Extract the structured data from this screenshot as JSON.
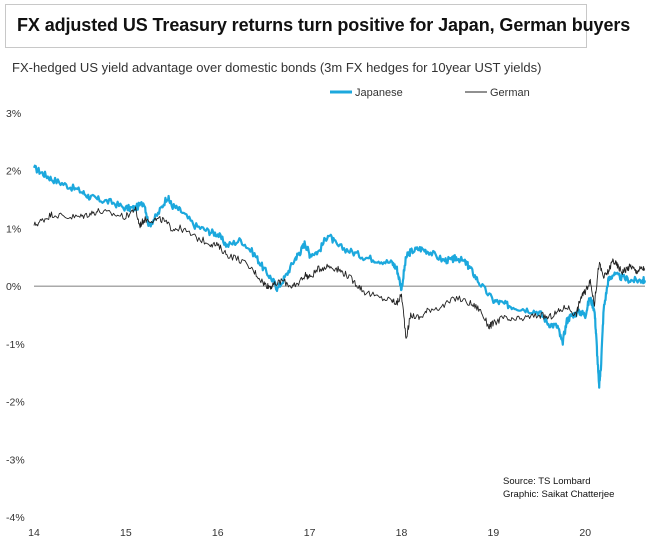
{
  "chart_data": {
    "type": "line",
    "title": "FX adjusted US Treasury returns turn positive for Japan, German buyers",
    "subtitle": "FX-hedged US yield advantage over domestic bonds (3m FX hedges for 10year UST yields)",
    "y_tick_labels": [
      "3%",
      "2%",
      "1%",
      "0%",
      "-1%",
      "-2%",
      "-3%",
      "-4%"
    ],
    "y_ticks": [
      3,
      2,
      1,
      0,
      -1,
      -2,
      -3,
      -4
    ],
    "x_tick_labels": [
      "14",
      "15",
      "16",
      "17",
      "18",
      "19",
      "20"
    ],
    "x_ticks": [
      2014,
      2015,
      2016,
      2017,
      2018,
      2019,
      2020
    ],
    "ylim": [
      -4,
      3
    ],
    "xlim": [
      2014,
      2020.65
    ],
    "zero_line": true,
    "legend_position": "top",
    "series": [
      {
        "name": "Japanese",
        "color": "#1ca8dd",
        "x": [
          2014.0,
          2014.1,
          2014.2,
          2014.35,
          2014.5,
          2014.6,
          2014.7,
          2014.85,
          2015.0,
          2015.1,
          2015.2,
          2015.25,
          2015.35,
          2015.45,
          2015.5,
          2015.6,
          2015.75,
          2015.9,
          2016.0,
          2016.1,
          2016.25,
          2016.4,
          2016.5,
          2016.6,
          2016.65,
          2016.75,
          2016.85,
          2016.9,
          2016.95,
          2017.0,
          2017.1,
          2017.2,
          2017.3,
          2017.45,
          2017.6,
          2017.75,
          2017.9,
          2017.95,
          2018.0,
          2018.05,
          2018.1,
          2018.2,
          2018.3,
          2018.45,
          2018.55,
          2018.6,
          2018.7,
          2018.75,
          2018.85,
          2019.0,
          2019.1,
          2019.2,
          2019.35,
          2019.5,
          2019.6,
          2019.7,
          2019.75,
          2019.8,
          2019.85,
          2019.95,
          2020.0,
          2020.05,
          2020.1,
          2020.12,
          2020.15,
          2020.17,
          2020.2,
          2020.25,
          2020.3,
          2020.4,
          2020.5,
          2020.6,
          2020.65
        ],
        "y": [
          2.05,
          1.95,
          1.85,
          1.75,
          1.65,
          1.55,
          1.5,
          1.45,
          1.35,
          1.35,
          1.45,
          1.05,
          1.25,
          1.55,
          1.4,
          1.3,
          1.05,
          0.95,
          0.9,
          0.7,
          0.8,
          0.55,
          0.3,
          0.1,
          -0.05,
          0.2,
          0.5,
          0.6,
          0.75,
          0.55,
          0.6,
          0.9,
          0.7,
          0.6,
          0.5,
          0.45,
          0.4,
          0.3,
          -0.05,
          0.5,
          0.6,
          0.65,
          0.6,
          0.45,
          0.45,
          0.5,
          0.4,
          0.3,
          0.05,
          -0.25,
          -0.3,
          -0.35,
          -0.4,
          -0.45,
          -0.65,
          -0.7,
          -1.0,
          -0.6,
          -0.5,
          -0.45,
          -0.5,
          -0.2,
          -0.4,
          -0.9,
          -1.75,
          -1.4,
          -0.4,
          0.1,
          0.2,
          0.15,
          0.1,
          0.1,
          0.1
        ]
      },
      {
        "name": "German",
        "color": "#222222",
        "x": [
          2014.0,
          2014.1,
          2014.2,
          2014.35,
          2014.5,
          2014.6,
          2014.7,
          2014.85,
          2015.0,
          2015.1,
          2015.15,
          2015.2,
          2015.3,
          2015.4,
          2015.5,
          2015.6,
          2015.75,
          2015.9,
          2016.0,
          2016.1,
          2016.25,
          2016.4,
          2016.5,
          2016.55,
          2016.6,
          2016.7,
          2016.8,
          2016.85,
          2016.95,
          2017.0,
          2017.1,
          2017.2,
          2017.3,
          2017.4,
          2017.5,
          2017.6,
          2017.75,
          2017.9,
          2017.95,
          2018.0,
          2018.05,
          2018.1,
          2018.2,
          2018.3,
          2018.45,
          2018.6,
          2018.75,
          2018.85,
          2018.95,
          2019.0,
          2019.1,
          2019.2,
          2019.35,
          2019.5,
          2019.6,
          2019.7,
          2019.8,
          2019.9,
          2019.95,
          2020.0,
          2020.05,
          2020.1,
          2020.15,
          2020.2,
          2020.25,
          2020.3,
          2020.35,
          2020.4,
          2020.45,
          2020.5,
          2020.55,
          2020.6,
          2020.65
        ],
        "y": [
          1.05,
          1.15,
          1.25,
          1.2,
          1.2,
          1.25,
          1.3,
          1.25,
          1.2,
          1.35,
          1.05,
          1.15,
          1.15,
          1.15,
          1.0,
          1.0,
          0.85,
          0.75,
          0.7,
          0.55,
          0.45,
          0.25,
          0.05,
          0.0,
          0.0,
          0.1,
          0.0,
          0.0,
          0.2,
          0.15,
          0.3,
          0.35,
          0.3,
          0.2,
          0.05,
          -0.1,
          -0.2,
          -0.25,
          -0.3,
          -0.15,
          -0.9,
          -0.5,
          -0.55,
          -0.4,
          -0.35,
          -0.2,
          -0.3,
          -0.4,
          -0.7,
          -0.65,
          -0.55,
          -0.6,
          -0.55,
          -0.5,
          -0.55,
          -0.45,
          -0.35,
          -0.5,
          -0.2,
          -0.1,
          0.1,
          -0.3,
          0.4,
          0.15,
          0.25,
          0.45,
          0.35,
          0.25,
          0.3,
          0.35,
          0.25,
          0.3,
          0.3
        ]
      }
    ],
    "annotations": [
      "Source: TS Lombard",
      "Graphic: Saikat Chatterjee"
    ]
  }
}
